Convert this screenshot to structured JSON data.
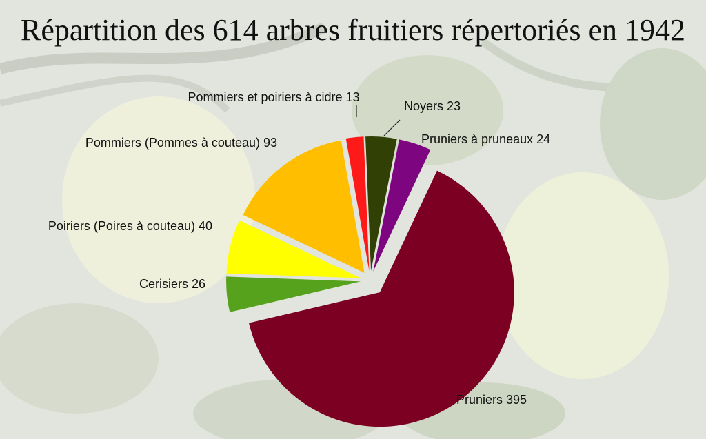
{
  "chart_data": {
    "type": "pie",
    "title": "Répartition des 614 arbres fruitiers répertoriés en 1942",
    "legend": "none",
    "slices": [
      {
        "label": "Pruniers 395",
        "value": 395,
        "color": "#7b0022"
      },
      {
        "label": "Cerisiers 26",
        "value": 26,
        "color": "#57a21c"
      },
      {
        "label": "Poiriers (Poires à couteau) 40",
        "value": 40,
        "color": "#ffff00"
      },
      {
        "label": "Pommiers (Pommes à couteau) 93",
        "value": 93,
        "color": "#ffbf00"
      },
      {
        "label": "Pommiers et poiriers à cidre 13",
        "value": 13,
        "color": "#ff1a1a"
      },
      {
        "label": "Noyers 23",
        "value": 23,
        "color": "#314004"
      },
      {
        "label": "Pruniers à pruneaux 24",
        "value": 24,
        "color": "#7e0580"
      }
    ]
  },
  "colors": {
    "background_photo": "apple-tree-photo",
    "title_text": "#111111"
  }
}
